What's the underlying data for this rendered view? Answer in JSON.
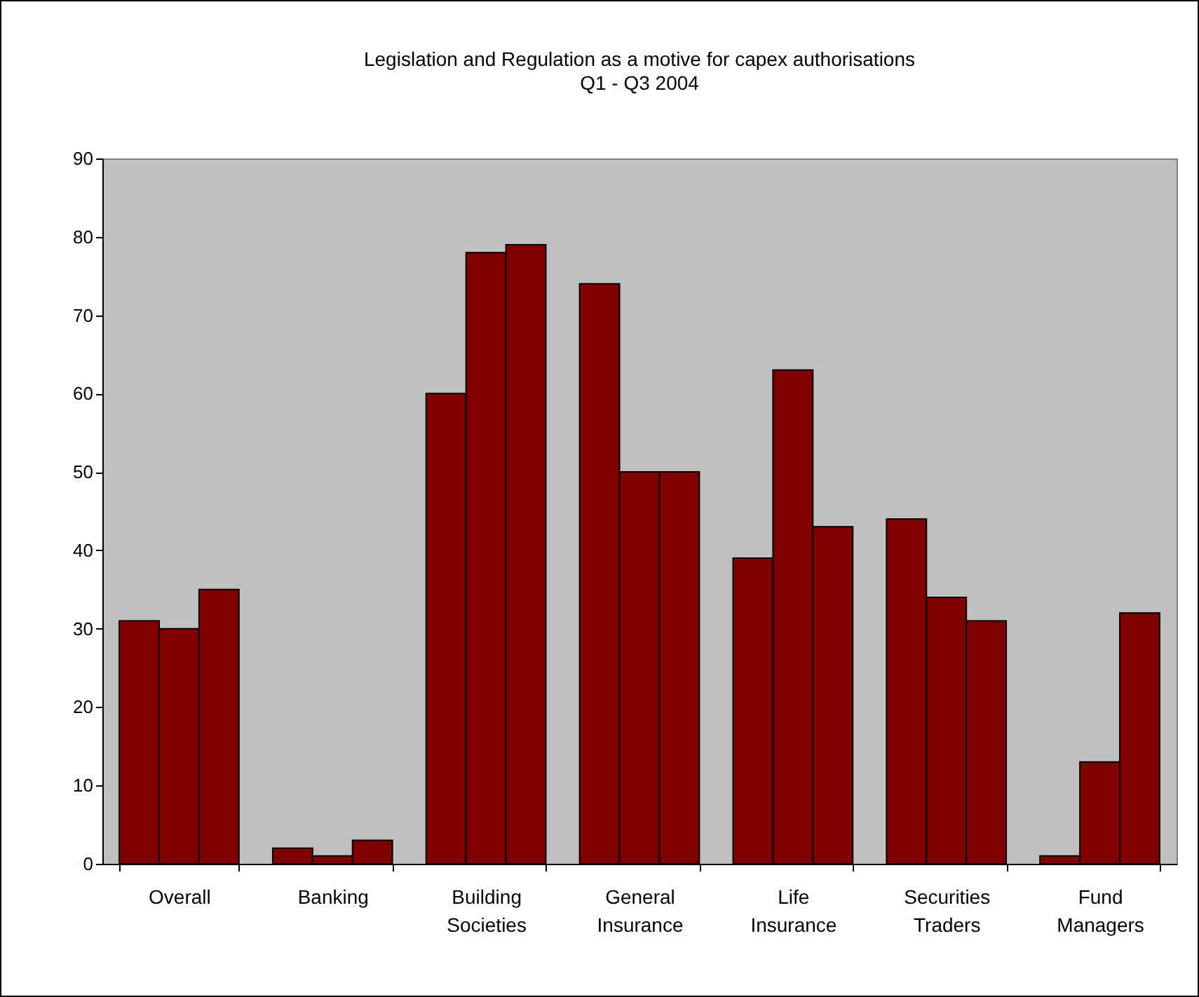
{
  "chart_data": {
    "type": "bar",
    "title": "Legislation and Regulation as a motive for capex authorisations",
    "subtitle": "Q1 - Q3 2004",
    "categories": [
      "Overall",
      "Banking",
      "Building Societies",
      "General Insurance",
      "Life Insurance",
      "Securities Traders",
      "Fund Managers"
    ],
    "series": [
      {
        "color": "#800000",
        "values": [
          31,
          2,
          60,
          74,
          39,
          44,
          1
        ]
      },
      {
        "color": "#800000",
        "values": [
          30,
          1,
          78,
          50,
          63,
          34,
          13
        ]
      },
      {
        "color": "#800000",
        "values": [
          35,
          3,
          79,
          50,
          43,
          31,
          32
        ]
      }
    ],
    "ylim": [
      0,
      90
    ],
    "yticks": [
      0,
      10,
      20,
      30,
      40,
      50,
      60,
      70,
      80,
      90
    ],
    "grid": false
  }
}
